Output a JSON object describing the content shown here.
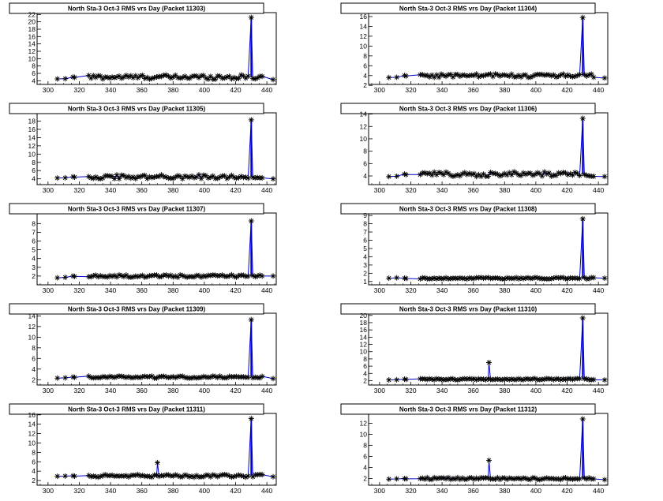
{
  "page": {
    "background": "#ffffff"
  },
  "style": {
    "line_color": "#0000cc",
    "marker_color": "#000000",
    "marker": "asterisk"
  },
  "chart_data": [
    {
      "type": "line",
      "title": "North Sta-3 Oct-3 RMS vrs Day (Packet 11303)",
      "xlim": [
        293,
        446
      ],
      "ylim": [
        3,
        22.5
      ],
      "xticks": [
        "300",
        "320",
        "340",
        "360",
        "380",
        "400",
        "420",
        "440"
      ],
      "yticks": [
        "4",
        "6",
        "8",
        "10",
        "12",
        "14",
        "16",
        "18",
        "20",
        "22"
      ],
      "baseline": 5.0,
      "noise": 0.6,
      "first": 4.5,
      "spike": {
        "x": 430,
        "y": 21.2
      },
      "bump": null,
      "end": 4.3
    },
    {
      "type": "line",
      "title": "North Sta-3 Oct-3 RMS vrs Day (Packet 11304)",
      "xlim": [
        293,
        446
      ],
      "ylim": [
        2.2,
        16.8
      ],
      "xticks": [
        "300",
        "320",
        "340",
        "360",
        "380",
        "400",
        "420",
        "440"
      ],
      "yticks": [
        "2",
        "4",
        "6",
        "8",
        "10",
        "12",
        "14",
        "16"
      ],
      "baseline": 4.0,
      "noise": 0.4,
      "first": 3.6,
      "spike": {
        "x": 430,
        "y": 15.8
      },
      "bump": null,
      "end": 3.5
    },
    {
      "type": "line",
      "title": "North Sta-3 Oct-3 RMS vrs Day (Packet 11305)",
      "xlim": [
        293,
        446
      ],
      "ylim": [
        2.6,
        20
      ],
      "xticks": [
        "300",
        "320",
        "340",
        "360",
        "380",
        "400",
        "420",
        "440"
      ],
      "yticks": [
        "4",
        "6",
        "8",
        "10",
        "12",
        "14",
        "16",
        "18"
      ],
      "baseline": 4.5,
      "noise": 0.5,
      "first": 4.2,
      "spike": {
        "x": 430,
        "y": 18.3
      },
      "bump": null,
      "end": 4.0
    },
    {
      "type": "line",
      "title": "North Sta-3 Oct-3 RMS vrs Day (Packet 11306)",
      "xlim": [
        293,
        446
      ],
      "ylim": [
        2.6,
        14.2
      ],
      "xticks": [
        "300",
        "320",
        "340",
        "360",
        "380",
        "400",
        "420",
        "440"
      ],
      "yticks": [
        "4",
        "6",
        "8",
        "10",
        "12",
        "14"
      ],
      "baseline": 4.3,
      "noise": 0.4,
      "first": 3.9,
      "spike": {
        "x": 430,
        "y": 13.3
      },
      "bump": null,
      "end": 3.9
    },
    {
      "type": "line",
      "title": "North Sta-3 Oct-3 RMS vrs Day (Packet 11307)",
      "xlim": [
        293,
        446
      ],
      "ylim": [
        1.0,
        9.2
      ],
      "xticks": [
        "300",
        "320",
        "340",
        "360",
        "380",
        "400",
        "420",
        "440"
      ],
      "yticks": [
        "2",
        "3",
        "4",
        "5",
        "6",
        "7",
        "8"
      ],
      "baseline": 2.0,
      "noise": 0.15,
      "first": 1.8,
      "spike": {
        "x": 430,
        "y": 8.3
      },
      "bump": null,
      "end": 2.0
    },
    {
      "type": "line",
      "title": "North Sta-3 Oct-3 RMS vrs Day (Packet 11308)",
      "xlim": [
        293,
        446
      ],
      "ylim": [
        0.6,
        9.3
      ],
      "xticks": [
        "300",
        "320",
        "340",
        "360",
        "380",
        "400",
        "420",
        "440"
      ],
      "yticks": [
        "1",
        "2",
        "3",
        "4",
        "5",
        "6",
        "7",
        "8",
        "9"
      ],
      "baseline": 1.4,
      "noise": 0.1,
      "first": 1.4,
      "spike": {
        "x": 430,
        "y": 8.6
      },
      "bump": null,
      "end": 1.4
    },
    {
      "type": "line",
      "title": "North Sta-3 Oct-3 RMS vrs Day (Packet 11309)",
      "xlim": [
        293,
        446
      ],
      "ylim": [
        1.0,
        14.5
      ],
      "xticks": [
        "300",
        "320",
        "340",
        "360",
        "380",
        "400",
        "420",
        "440"
      ],
      "yticks": [
        "2",
        "4",
        "6",
        "8",
        "10",
        "12",
        "14"
      ],
      "baseline": 2.5,
      "noise": 0.2,
      "first": 2.3,
      "spike": {
        "x": 430,
        "y": 13.3
      },
      "bump": null,
      "end": 2.2
    },
    {
      "type": "line",
      "title": "North Sta-3 Oct-3 RMS vrs Day (Packet 11310)",
      "xlim": [
        293,
        446
      ],
      "ylim": [
        0.8,
        20.6
      ],
      "xticks": [
        "300",
        "320",
        "340",
        "360",
        "380",
        "400",
        "420",
        "440"
      ],
      "yticks": [
        "2",
        "4",
        "6",
        "8",
        "10",
        "12",
        "14",
        "16",
        "18",
        "20"
      ],
      "baseline": 2.4,
      "noise": 0.2,
      "first": 2.2,
      "spike": {
        "x": 430,
        "y": 19.3
      },
      "bump": {
        "x": 370,
        "y": 7.0
      },
      "end": 2.2
    },
    {
      "type": "line",
      "title": "North Sta-3 Oct-3 RMS vrs Day (Packet 11311)",
      "xlim": [
        293,
        446
      ],
      "ylim": [
        1.0,
        16.3
      ],
      "xticks": [
        "300",
        "320",
        "340",
        "360",
        "380",
        "400",
        "420",
        "440"
      ],
      "yticks": [
        "2",
        "4",
        "6",
        "8",
        "10",
        "12",
        "14",
        "16"
      ],
      "baseline": 3.0,
      "noise": 0.3,
      "first": 2.9,
      "spike": {
        "x": 430,
        "y": 15.2
      },
      "bump": {
        "x": 370,
        "y": 5.8
      },
      "end": 2.8
    },
    {
      "type": "line",
      "title": "North Sta-3 Oct-3 RMS vrs Day (Packet 11312)",
      "xlim": [
        293,
        446
      ],
      "ylim": [
        0.8,
        13.8
      ],
      "xticks": [
        "300",
        "320",
        "340",
        "360",
        "380",
        "400",
        "420",
        "440"
      ],
      "yticks": [
        "2",
        "4",
        "6",
        "8",
        "10",
        "12"
      ],
      "baseline": 2.0,
      "noise": 0.2,
      "first": 1.9,
      "spike": {
        "x": 430,
        "y": 12.8
      },
      "bump": {
        "x": 370,
        "y": 5.3
      },
      "end": 1.8
    }
  ]
}
